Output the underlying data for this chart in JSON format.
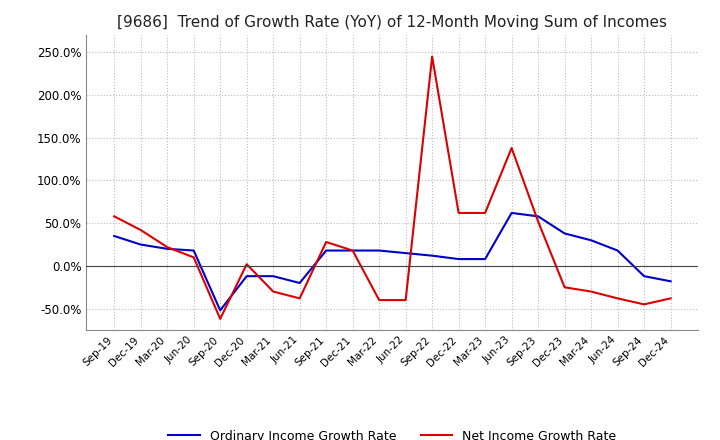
{
  "title": "[9686]  Trend of Growth Rate (YoY) of 12-Month Moving Sum of Incomes",
  "title_fontsize": 11,
  "ylim": [
    -75,
    270
  ],
  "yticks": [
    -50,
    0,
    50,
    100,
    150,
    200,
    250
  ],
  "background_color": "#ffffff",
  "grid_color": "#bbbbbb",
  "ordinary_color": "#0000cc",
  "net_color": "#dd0000",
  "legend_ordinary": "Ordinary Income Growth Rate",
  "legend_net": "Net Income Growth Rate",
  "x_labels": [
    "Sep-19",
    "Dec-19",
    "Mar-20",
    "Jun-20",
    "Sep-20",
    "Dec-20",
    "Mar-21",
    "Jun-21",
    "Sep-21",
    "Dec-21",
    "Mar-22",
    "Jun-22",
    "Sep-22",
    "Dec-22",
    "Mar-23",
    "Jun-23",
    "Sep-23",
    "Dec-23",
    "Mar-24",
    "Jun-24",
    "Sep-24",
    "Dec-24"
  ],
  "ordinary_values": [
    35,
    25,
    20,
    18,
    -52,
    -12,
    -12,
    -20,
    18,
    18,
    18,
    15,
    12,
    8,
    8,
    62,
    58,
    38,
    30,
    18,
    -12,
    -18
  ],
  "net_values": [
    58,
    42,
    22,
    10,
    -62,
    2,
    -30,
    -38,
    28,
    18,
    -40,
    -40,
    245,
    62,
    62,
    138,
    52,
    -25,
    -30,
    -38,
    -45,
    -38
  ]
}
